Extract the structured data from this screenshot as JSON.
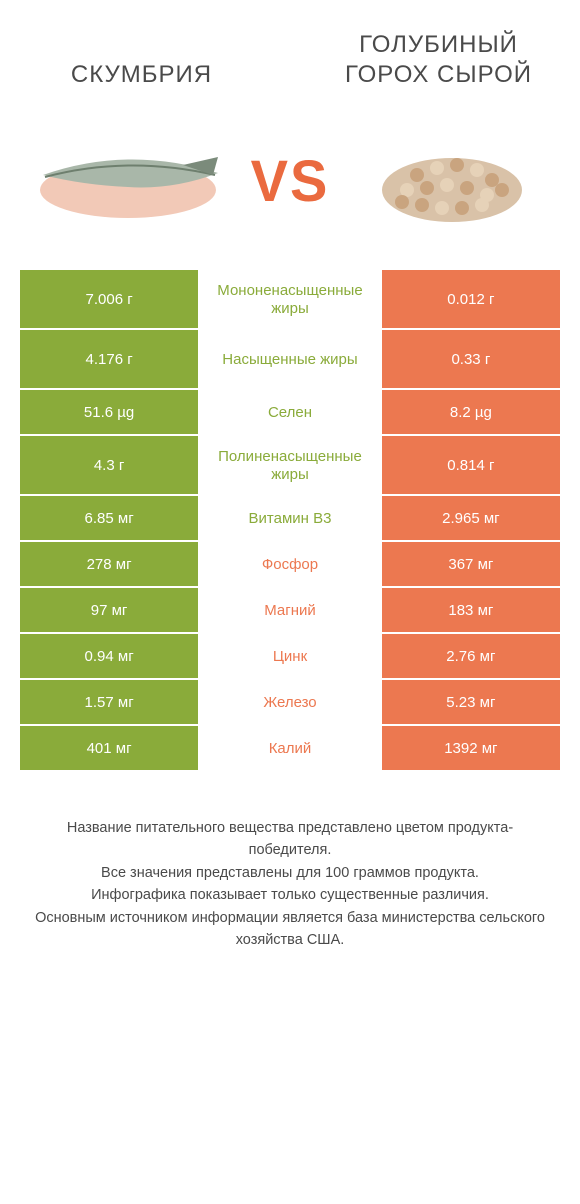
{
  "colors": {
    "green": "#8aab3a",
    "orange": "#ec7850",
    "vs": "#ea6a3f",
    "text": "#4a4a4a"
  },
  "titles": {
    "left": "СКУМБРИЯ",
    "right": "ГОЛУБИНЫЙ ГОРОХ СЫРОЙ"
  },
  "vs": "VS",
  "rows": [
    {
      "left": "7.006 г",
      "mid": "Мононенасыщенные жиры",
      "right": "0.012 г",
      "winner": "left",
      "tall": true
    },
    {
      "left": "4.176 г",
      "mid": "Насыщенные жиры",
      "right": "0.33 г",
      "winner": "left",
      "tall": true
    },
    {
      "left": "51.6 µg",
      "mid": "Селен",
      "right": "8.2 µg",
      "winner": "left",
      "tall": false
    },
    {
      "left": "4.3 г",
      "mid": "Полиненасыщенные жиры",
      "right": "0.814 г",
      "winner": "left",
      "tall": true
    },
    {
      "left": "6.85 мг",
      "mid": "Витамин B3",
      "right": "2.965 мг",
      "winner": "left",
      "tall": false
    },
    {
      "left": "278 мг",
      "mid": "Фосфор",
      "right": "367 мг",
      "winner": "right",
      "tall": false
    },
    {
      "left": "97 мг",
      "mid": "Магний",
      "right": "183 мг",
      "winner": "right",
      "tall": false
    },
    {
      "left": "0.94 мг",
      "mid": "Цинк",
      "right": "2.76 мг",
      "winner": "right",
      "tall": false
    },
    {
      "left": "1.57 мг",
      "mid": "Железо",
      "right": "5.23 мг",
      "winner": "right",
      "tall": false
    },
    {
      "left": "401 мг",
      "mid": "Калий",
      "right": "1392 мг",
      "winner": "right",
      "tall": false
    }
  ],
  "footnotes": [
    "Название питательного вещества представлено цветом продукта-победителя.",
    "Все значения представлены для 100 граммов продукта.",
    "Инфографика показывает только существенные различия.",
    "Основным источником информации является база министерства сельского хозяйства США."
  ]
}
